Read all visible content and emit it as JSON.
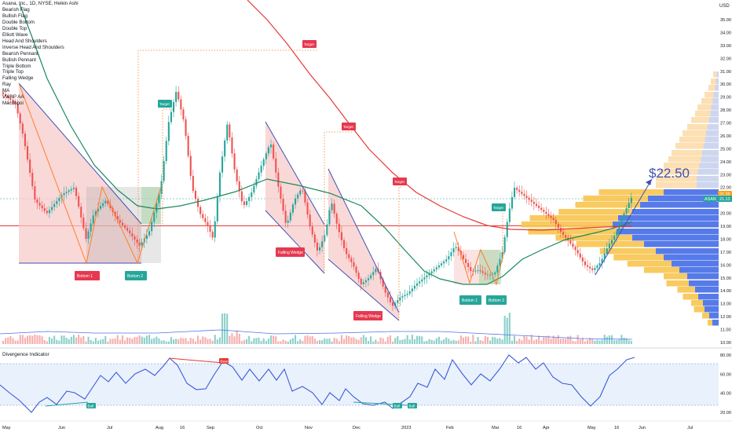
{
  "header": {
    "symbol_line": "Asana, Inc., 1D, NYSE, Heikin Ashi",
    "currency": "USD"
  },
  "indicator_list": [
    "Bearish Flag",
    "Bullish Flag",
    "Double Bottom",
    "Double Top",
    "Elliott Wave",
    "Head And Shoulders",
    "Inverse Head And Shoulders",
    "Bearish Pennant",
    "Bullish Pennant",
    "Triple Bottom",
    "Triple Top",
    "Falling Wedge",
    "Ray",
    "MA",
    "VWAP AA",
    "Macdbpoi"
  ],
  "chart_data": {
    "type": "candlestick",
    "price_axis": {
      "ticks": [
        "35.00",
        "34.00",
        "33.00",
        "32.00",
        "31.00",
        "30.00",
        "29.00",
        "28.00",
        "27.00",
        "26.00",
        "25.00",
        "24.00",
        "23.00",
        "22.00",
        "21.00",
        "20.00",
        "19.00",
        "18.00",
        "17.00",
        "16.00",
        "15.00",
        "14.00",
        "13.00",
        "12.00",
        "11.00",
        "10.00"
      ],
      "range": [
        10,
        36
      ]
    },
    "time_axis": [
      "May",
      "Jun",
      "Jul",
      "Aug",
      "16",
      "Sep",
      "Oct",
      "Nov",
      "Dec",
      "2023",
      "Feb",
      "Mar",
      "16",
      "Apr",
      "May",
      "16",
      "Jun",
      "Jul"
    ],
    "price_badges": [
      {
        "label": "21.25",
        "value": 21.25,
        "color": "#f7a41c"
      },
      {
        "label": "ASAN",
        "value": 21.13,
        "color": "#26a69a"
      },
      {
        "label": "21.13",
        "value": 21.13,
        "color": "#26a69a"
      }
    ],
    "target_labels": [
      "Target",
      "Target",
      "Target",
      "Target",
      "Target"
    ],
    "pattern_labels": [
      "Bottom 1",
      "Bottom 2",
      "Falling Wedge",
      "Falling Wedge",
      "Bottom 1",
      "Bottom 2"
    ],
    "projection_label": "$22.50",
    "oscillator": {
      "title": "Divergence Indicator",
      "ticks": [
        "80.00",
        "60.00",
        "40.00",
        "20.00"
      ],
      "range": [
        20,
        80
      ],
      "divergence_labels": [
        "Bull",
        "Bear",
        "Bull",
        "Bull"
      ]
    }
  },
  "colors": {
    "bull": "#26a69a",
    "bear": "#ef5350",
    "ma_green": "#1b8a5a",
    "ma_red": "#e53935",
    "volume_profile_orange": "#f7c44e",
    "volume_profile_blue": "#4d74e8",
    "oscillator_line": "#3b5bd6",
    "target_box": "#e53950",
    "bottom_box": "#26a69a"
  }
}
